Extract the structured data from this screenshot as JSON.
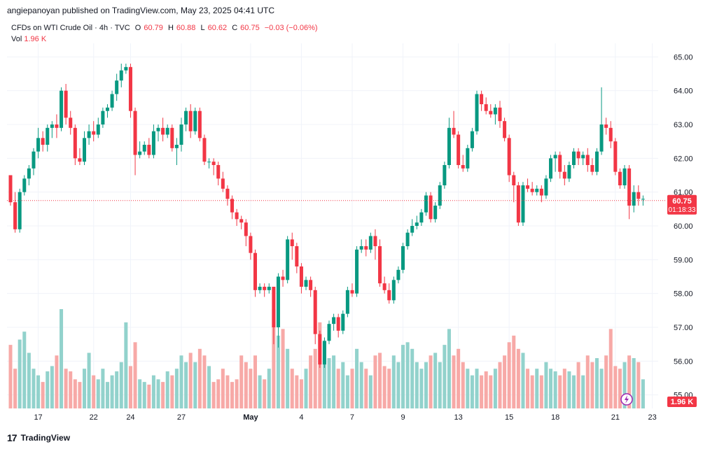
{
  "header": {
    "published": "angiepanoyan published on TradingView.com, May 23, 2025 04:41 UTC"
  },
  "legend": {
    "symbol": "CFDs on WTI Crude Oil · 4h · TVC",
    "o_label": "O",
    "o": "60.79",
    "h_label": "H",
    "h": "60.88",
    "l_label": "L",
    "l": "60.62",
    "c_label": "C",
    "c": "60.75",
    "change": "−0.03 (−0.06%)",
    "vol_label": "Vol",
    "vol": "1.96 K"
  },
  "price_badge": {
    "price": "60.75",
    "countdown": "01:18:33"
  },
  "volume_badge": "1.96 K",
  "footer": {
    "brand_mark": "17",
    "brand": "TradingView"
  },
  "colors": {
    "up": "#089981",
    "down": "#f23645",
    "up_vol": "#92d2cc",
    "down_vol": "#f7a9a7",
    "grid": "#f0f3fa",
    "axis_text": "#131722"
  },
  "chart_data": {
    "type": "candlestick",
    "ylim": [
      54.6,
      65.4
    ],
    "y_ticks": [
      "55.00",
      "56.00",
      "57.00",
      "58.00",
      "59.00",
      "60.00",
      "61.00",
      "62.00",
      "63.00",
      "64.00",
      "65.00"
    ],
    "x_ticks": [
      "17",
      "22",
      "24",
      "27",
      "May",
      "4",
      "7",
      "9",
      "13",
      "15",
      "18",
      "21",
      "23"
    ],
    "candles": [
      [
        61.5,
        60.7,
        61.5,
        60.6,
        48
      ],
      [
        60.7,
        59.9,
        61.0,
        59.8,
        30
      ],
      [
        59.9,
        61.0,
        61.1,
        59.8,
        52
      ],
      [
        61.0,
        61.4,
        61.5,
        60.9,
        58
      ],
      [
        61.4,
        61.7,
        61.8,
        61.2,
        42
      ],
      [
        61.7,
        62.2,
        62.3,
        61.5,
        30
      ],
      [
        62.2,
        62.6,
        62.9,
        62.0,
        25
      ],
      [
        62.6,
        62.4,
        62.8,
        62.2,
        20
      ],
      [
        62.4,
        62.9,
        63.0,
        62.2,
        28
      ],
      [
        62.9,
        63.0,
        63.1,
        62.6,
        32
      ],
      [
        63.0,
        62.9,
        63.3,
        62.6,
        40
      ],
      [
        62.9,
        64.0,
        64.1,
        62.8,
        75
      ],
      [
        64.0,
        63.2,
        64.2,
        63.0,
        30
      ],
      [
        63.2,
        62.9,
        63.4,
        62.7,
        28
      ],
      [
        62.9,
        62.0,
        63.0,
        61.8,
        22
      ],
      [
        62.0,
        61.9,
        62.3,
        61.8,
        20
      ],
      [
        61.9,
        62.6,
        62.8,
        61.8,
        30
      ],
      [
        62.6,
        62.8,
        63.0,
        62.4,
        42
      ],
      [
        62.8,
        62.7,
        63.1,
        62.5,
        25
      ],
      [
        62.7,
        63.0,
        63.2,
        62.6,
        22
      ],
      [
        63.0,
        63.4,
        63.5,
        62.9,
        30
      ],
      [
        63.4,
        63.5,
        63.6,
        63.2,
        20
      ],
      [
        63.5,
        63.9,
        64.0,
        63.4,
        25
      ],
      [
        63.9,
        64.3,
        64.5,
        63.7,
        28
      ],
      [
        64.3,
        64.6,
        64.8,
        64.1,
        35
      ],
      [
        64.6,
        64.7,
        64.8,
        64.5,
        65
      ],
      [
        64.7,
        63.4,
        64.8,
        63.2,
        32
      ],
      [
        63.4,
        62.1,
        63.5,
        61.5,
        50
      ],
      [
        62.1,
        62.2,
        62.5,
        62.0,
        22
      ],
      [
        62.2,
        62.4,
        62.5,
        62.1,
        20
      ],
      [
        62.4,
        62.1,
        62.6,
        62.0,
        18
      ],
      [
        62.1,
        62.8,
        63.0,
        62.0,
        25
      ],
      [
        62.8,
        62.9,
        63.0,
        62.5,
        22
      ],
      [
        62.9,
        62.7,
        63.2,
        62.5,
        20
      ],
      [
        62.7,
        62.9,
        63.0,
        62.6,
        28
      ],
      [
        62.9,
        62.3,
        63.0,
        62.2,
        25
      ],
      [
        62.3,
        62.4,
        62.6,
        61.8,
        30
      ],
      [
        62.4,
        63.0,
        63.2,
        62.2,
        40
      ],
      [
        63.0,
        63.4,
        63.5,
        62.8,
        35
      ],
      [
        63.4,
        62.8,
        63.6,
        62.6,
        42
      ],
      [
        62.8,
        63.4,
        63.5,
        62.7,
        35
      ],
      [
        63.4,
        62.6,
        63.5,
        62.5,
        45
      ],
      [
        62.6,
        61.9,
        62.7,
        61.8,
        40
      ],
      [
        61.9,
        61.9,
        62.0,
        61.7,
        32
      ],
      [
        61.9,
        61.8,
        62.0,
        61.5,
        20
      ],
      [
        61.8,
        61.4,
        61.9,
        61.2,
        22
      ],
      [
        61.4,
        61.1,
        61.6,
        61.0,
        30
      ],
      [
        61.1,
        60.8,
        61.2,
        60.6,
        25
      ],
      [
        60.8,
        60.4,
        60.9,
        60.2,
        20
      ],
      [
        60.4,
        60.2,
        60.5,
        60.0,
        22
      ],
      [
        60.2,
        60.1,
        60.3,
        59.9,
        40
      ],
      [
        60.1,
        59.7,
        60.2,
        59.4,
        35
      ],
      [
        59.7,
        59.2,
        59.8,
        59.0,
        30
      ],
      [
        59.2,
        58.1,
        59.3,
        57.9,
        40
      ],
      [
        58.1,
        58.2,
        58.3,
        58.0,
        25
      ],
      [
        58.2,
        58.1,
        58.3,
        57.9,
        22
      ],
      [
        58.1,
        58.2,
        58.3,
        58.0,
        30
      ],
      [
        58.2,
        57.0,
        58.2,
        56.5,
        75
      ],
      [
        57.0,
        58.5,
        58.6,
        56.4,
        55
      ],
      [
        58.5,
        58.4,
        58.7,
        58.2,
        60
      ],
      [
        58.4,
        59.6,
        59.7,
        58.3,
        45
      ],
      [
        59.6,
        59.4,
        59.8,
        59.0,
        30
      ],
      [
        59.4,
        58.8,
        59.5,
        58.6,
        25
      ],
      [
        58.8,
        58.2,
        58.9,
        58.0,
        22
      ],
      [
        58.2,
        58.4,
        58.5,
        58.1,
        30
      ],
      [
        58.4,
        58.1,
        58.5,
        57.9,
        40
      ],
      [
        58.1,
        56.8,
        58.2,
        56.5,
        45
      ],
      [
        56.8,
        55.9,
        56.9,
        55.8,
        65
      ],
      [
        55.9,
        56.6,
        56.7,
        55.8,
        50
      ],
      [
        56.6,
        57.1,
        57.2,
        56.5,
        38
      ],
      [
        57.1,
        57.3,
        57.4,
        56.9,
        40
      ],
      [
        57.3,
        56.9,
        57.4,
        56.7,
        30
      ],
      [
        56.9,
        57.4,
        57.5,
        56.8,
        35
      ],
      [
        57.4,
        58.1,
        58.2,
        57.3,
        25
      ],
      [
        58.1,
        58.0,
        58.3,
        57.9,
        30
      ],
      [
        58.0,
        59.3,
        59.4,
        57.9,
        45
      ],
      [
        59.3,
        59.4,
        59.6,
        59.2,
        35
      ],
      [
        59.4,
        59.3,
        59.6,
        59.1,
        30
      ],
      [
        59.3,
        59.7,
        59.8,
        59.2,
        25
      ],
      [
        59.7,
        59.4,
        59.9,
        59.0,
        40
      ],
      [
        59.4,
        58.3,
        59.6,
        58.2,
        42
      ],
      [
        58.3,
        58.1,
        58.5,
        58.0,
        32
      ],
      [
        58.1,
        57.8,
        58.3,
        57.7,
        30
      ],
      [
        57.8,
        58.4,
        58.5,
        57.7,
        40
      ],
      [
        58.4,
        58.7,
        58.8,
        58.3,
        35
      ],
      [
        58.7,
        59.4,
        59.5,
        58.6,
        48
      ],
      [
        59.4,
        59.8,
        59.9,
        59.3,
        50
      ],
      [
        59.8,
        60.0,
        60.2,
        59.7,
        45
      ],
      [
        60.0,
        60.1,
        60.3,
        59.9,
        35
      ],
      [
        60.1,
        60.4,
        60.5,
        60.0,
        30
      ],
      [
        60.4,
        60.9,
        61.0,
        60.3,
        35
      ],
      [
        60.9,
        60.2,
        61.0,
        60.1,
        40
      ],
      [
        60.2,
        60.6,
        60.7,
        60.1,
        42
      ],
      [
        60.6,
        61.2,
        61.3,
        60.5,
        35
      ],
      [
        61.2,
        61.8,
        61.9,
        61.1,
        48
      ],
      [
        61.8,
        62.9,
        63.2,
        61.7,
        60
      ],
      [
        62.9,
        62.7,
        63.4,
        62.6,
        40
      ],
      [
        62.7,
        61.8,
        62.8,
        61.7,
        45
      ],
      [
        61.8,
        61.7,
        62.1,
        61.6,
        35
      ],
      [
        61.7,
        62.3,
        62.4,
        61.6,
        30
      ],
      [
        62.3,
        62.8,
        62.9,
        62.2,
        25
      ],
      [
        62.8,
        63.9,
        64.0,
        62.7,
        30
      ],
      [
        63.9,
        63.6,
        64.0,
        63.4,
        25
      ],
      [
        63.6,
        63.4,
        63.8,
        63.3,
        28
      ],
      [
        63.4,
        63.3,
        63.6,
        63.2,
        25
      ],
      [
        63.3,
        63.5,
        63.6,
        63.0,
        30
      ],
      [
        63.5,
        63.1,
        63.7,
        62.9,
        35
      ],
      [
        63.1,
        62.6,
        63.2,
        62.5,
        40
      ],
      [
        62.6,
        61.5,
        62.7,
        61.3,
        50
      ],
      [
        61.5,
        61.2,
        61.6,
        60.7,
        55
      ],
      [
        61.2,
        60.1,
        61.3,
        60.0,
        45
      ],
      [
        60.1,
        61.2,
        61.3,
        60.0,
        42
      ],
      [
        61.2,
        61.1,
        61.4,
        61.0,
        30
      ],
      [
        61.1,
        61.0,
        61.3,
        60.9,
        25
      ],
      [
        61.0,
        61.1,
        61.2,
        60.9,
        30
      ],
      [
        61.1,
        60.9,
        61.2,
        60.7,
        25
      ],
      [
        60.9,
        61.4,
        61.5,
        60.8,
        35
      ],
      [
        61.4,
        62.0,
        62.1,
        61.3,
        30
      ],
      [
        62.0,
        62.1,
        62.2,
        61.6,
        28
      ],
      [
        62.1,
        61.6,
        62.2,
        61.4,
        25
      ],
      [
        61.6,
        61.4,
        61.8,
        61.2,
        30
      ],
      [
        61.4,
        61.8,
        61.9,
        61.3,
        28
      ],
      [
        61.8,
        62.2,
        62.3,
        61.7,
        25
      ],
      [
        62.2,
        62.0,
        62.3,
        61.8,
        35
      ],
      [
        62.0,
        62.1,
        62.2,
        61.8,
        25
      ],
      [
        62.1,
        61.8,
        62.3,
        61.6,
        40
      ],
      [
        61.8,
        61.6,
        62.0,
        61.5,
        35
      ],
      [
        61.6,
        62.2,
        62.3,
        61.5,
        38
      ],
      [
        62.2,
        63.0,
        64.1,
        62.1,
        30
      ],
      [
        63.0,
        62.9,
        63.2,
        62.7,
        40
      ],
      [
        62.9,
        62.5,
        63.1,
        62.3,
        60
      ],
      [
        62.5,
        61.6,
        62.6,
        61.5,
        32
      ],
      [
        61.6,
        61.2,
        61.7,
        61.1,
        30
      ],
      [
        61.2,
        61.7,
        61.8,
        61.1,
        35
      ],
      [
        61.7,
        60.6,
        61.8,
        60.2,
        40
      ],
      [
        60.6,
        61.0,
        61.2,
        60.4,
        38
      ],
      [
        61.0,
        60.8,
        61.2,
        60.6,
        35
      ],
      [
        60.8,
        60.8,
        60.9,
        60.6,
        22
      ]
    ]
  }
}
